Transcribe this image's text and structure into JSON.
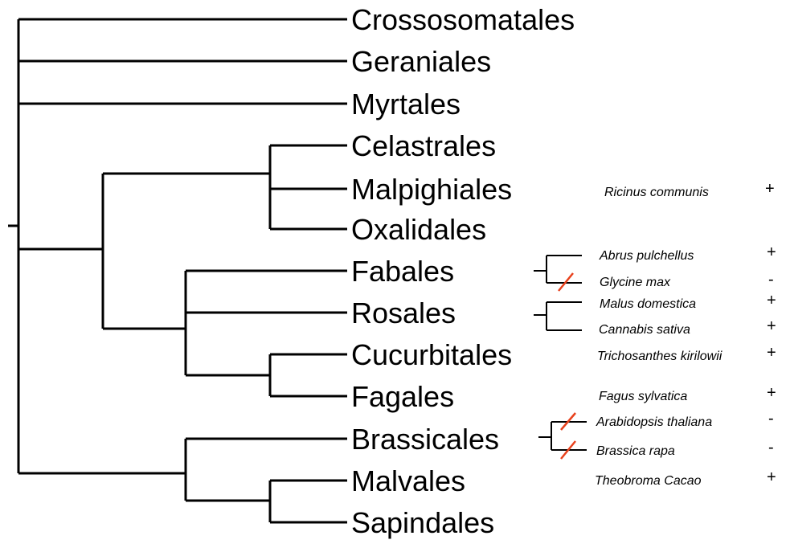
{
  "orders": [
    "Crossosomatales",
    "Geraniales",
    "Myrtales",
    "Celastrales",
    "Malpighiales",
    "Oxalidales",
    "Fabales",
    "Rosales",
    "Cucurbitales",
    "Fagales",
    "Brassicales",
    "Malvales",
    "Sapindales"
  ],
  "species": [
    {
      "name": "Ricinus communis",
      "sign": "+"
    },
    {
      "name": "Abrus pulchellus",
      "sign": "+"
    },
    {
      "name": "Glycine max",
      "sign": "-"
    },
    {
      "name": "Malus domestica",
      "sign": "+"
    },
    {
      "name": "Cannabis sativa",
      "sign": "+"
    },
    {
      "name": "Trichosanthes kirilowii",
      "sign": "+"
    },
    {
      "name": "Fagus sylvatica",
      "sign": "+"
    },
    {
      "name": "Arabidopsis thaliana",
      "sign": "-"
    },
    {
      "name": "Brassica rapa",
      "sign": "-"
    },
    {
      "name": "Theobroma Cacao",
      "sign": "+"
    }
  ],
  "colors": {
    "line": "#000000",
    "loss_marker": "#e8411c"
  }
}
